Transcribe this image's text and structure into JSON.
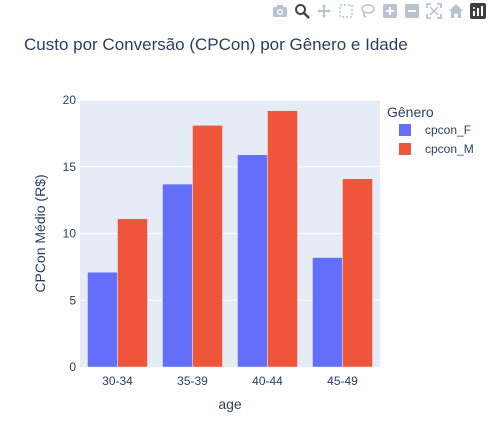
{
  "chart_data": {
    "type": "bar",
    "title": "Custo por Conversão (CPCon) por Gênero e Idade",
    "xlabel": "age",
    "ylabel": "CPCon Médio (R$)",
    "categories": [
      "30-34",
      "35-39",
      "40-44",
      "45-49"
    ],
    "ylim": [
      0,
      20
    ],
    "yticks": [
      0,
      5,
      10,
      15,
      20
    ],
    "grid": true,
    "legend": {
      "title": "Gênero",
      "placement": "right"
    },
    "series": [
      {
        "name": "cpcon_F",
        "color": "#636efa",
        "values": [
          7.1,
          13.7,
          15.9,
          8.2
        ]
      },
      {
        "name": "cpcon_M",
        "color": "#ef553b",
        "values": [
          11.1,
          18.1,
          19.2,
          14.1
        ]
      }
    ]
  },
  "modebar": {
    "icons": [
      "camera-icon",
      "zoom-icon",
      "pan-icon",
      "box-select-icon",
      "lasso-icon",
      "zoom-in-icon",
      "zoom-out-icon",
      "autoscale-icon",
      "home-icon",
      "plotly-logo-icon"
    ]
  }
}
